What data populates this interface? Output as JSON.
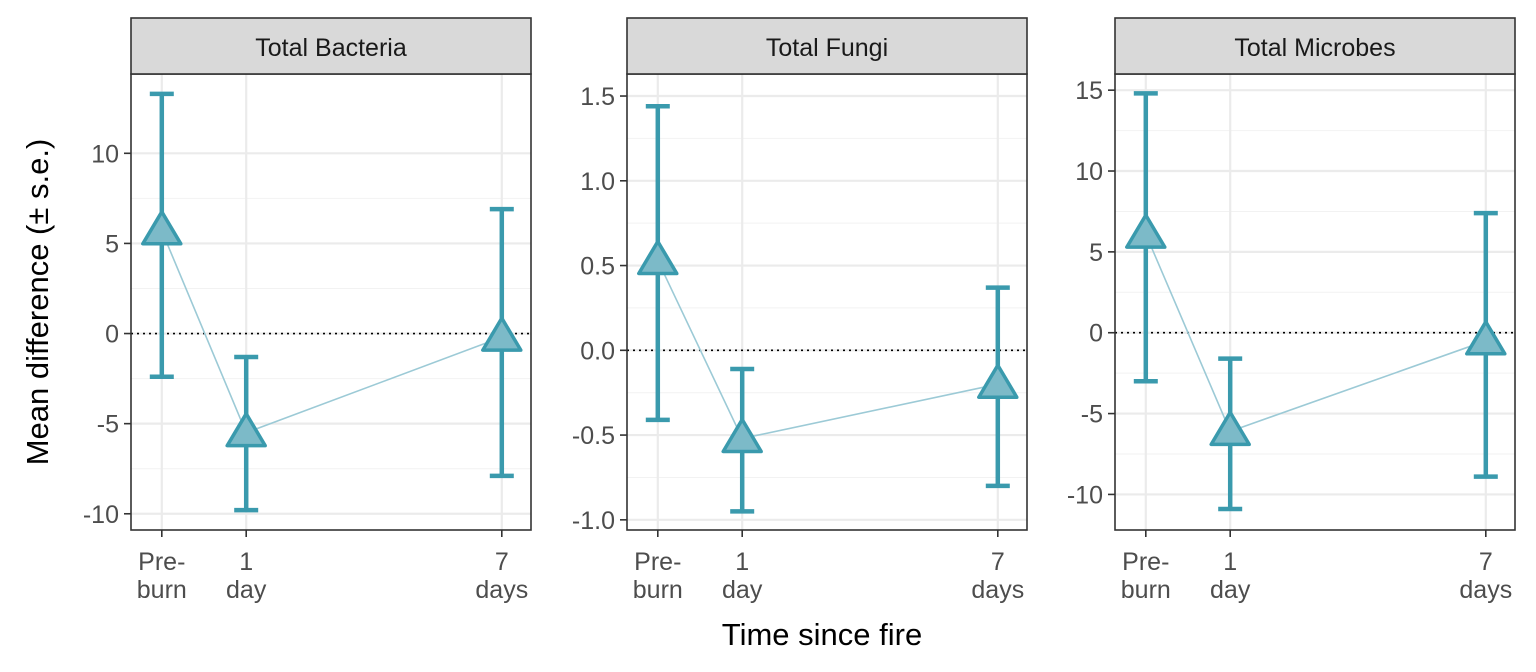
{
  "chart_data": {
    "type": "line",
    "xlabel": "Time since fire",
    "ylabel": "Mean difference (± s.e.)",
    "grid": true,
    "reference_line_y": 0,
    "categories": [
      [
        "Pre-",
        "burn"
      ],
      [
        "1",
        "day"
      ],
      [
        "7",
        "days"
      ]
    ],
    "x_days": [
      -1,
      1,
      7
    ],
    "colors": {
      "series": "#3a9aad",
      "marker_fill": "#7cbac8",
      "connector": "#9ccad6"
    },
    "panels": [
      {
        "title": "Total Bacteria",
        "ylim": [
          -10.9,
          14.4
        ],
        "yticks": [
          10,
          5,
          0,
          -5,
          -10
        ],
        "ytick_labels": [
          "10",
          "5",
          "0",
          "-5",
          "-10"
        ],
        "points": [
          {
            "x": -1,
            "mean": 5.7,
            "lower": -2.4,
            "upper": 13.3
          },
          {
            "x": 1,
            "mean": -5.5,
            "lower": -9.8,
            "upper": -1.3
          },
          {
            "x": 7,
            "mean": -0.2,
            "lower": -7.9,
            "upper": 6.9
          }
        ]
      },
      {
        "title": "Total Fungi",
        "ylim": [
          -1.06,
          1.63
        ],
        "yticks": [
          1.5,
          1.0,
          0.5,
          0.0,
          -0.5,
          -1.0
        ],
        "ytick_labels": [
          "1.5",
          "1.0",
          "0.5",
          "0.0",
          "-0.5",
          "-1.0"
        ],
        "points": [
          {
            "x": -1,
            "mean": 0.53,
            "lower": -0.41,
            "upper": 1.44
          },
          {
            "x": 1,
            "mean": -0.52,
            "lower": -0.95,
            "upper": -0.11
          },
          {
            "x": 7,
            "mean": -0.2,
            "lower": -0.8,
            "upper": 0.37
          }
        ]
      },
      {
        "title": "Total Microbes",
        "ylim": [
          -12.2,
          16.0
        ],
        "yticks": [
          15,
          10,
          5,
          0,
          -5,
          -10
        ],
        "ytick_labels": [
          "15",
          "10",
          "5",
          "0",
          "-5",
          "-10"
        ],
        "points": [
          {
            "x": -1,
            "mean": 6.1,
            "lower": -3.0,
            "upper": 14.8
          },
          {
            "x": 1,
            "mean": -6.1,
            "lower": -10.9,
            "upper": -1.6
          },
          {
            "x": 7,
            "mean": -0.5,
            "lower": -8.9,
            "upper": 7.4
          }
        ]
      }
    ]
  }
}
